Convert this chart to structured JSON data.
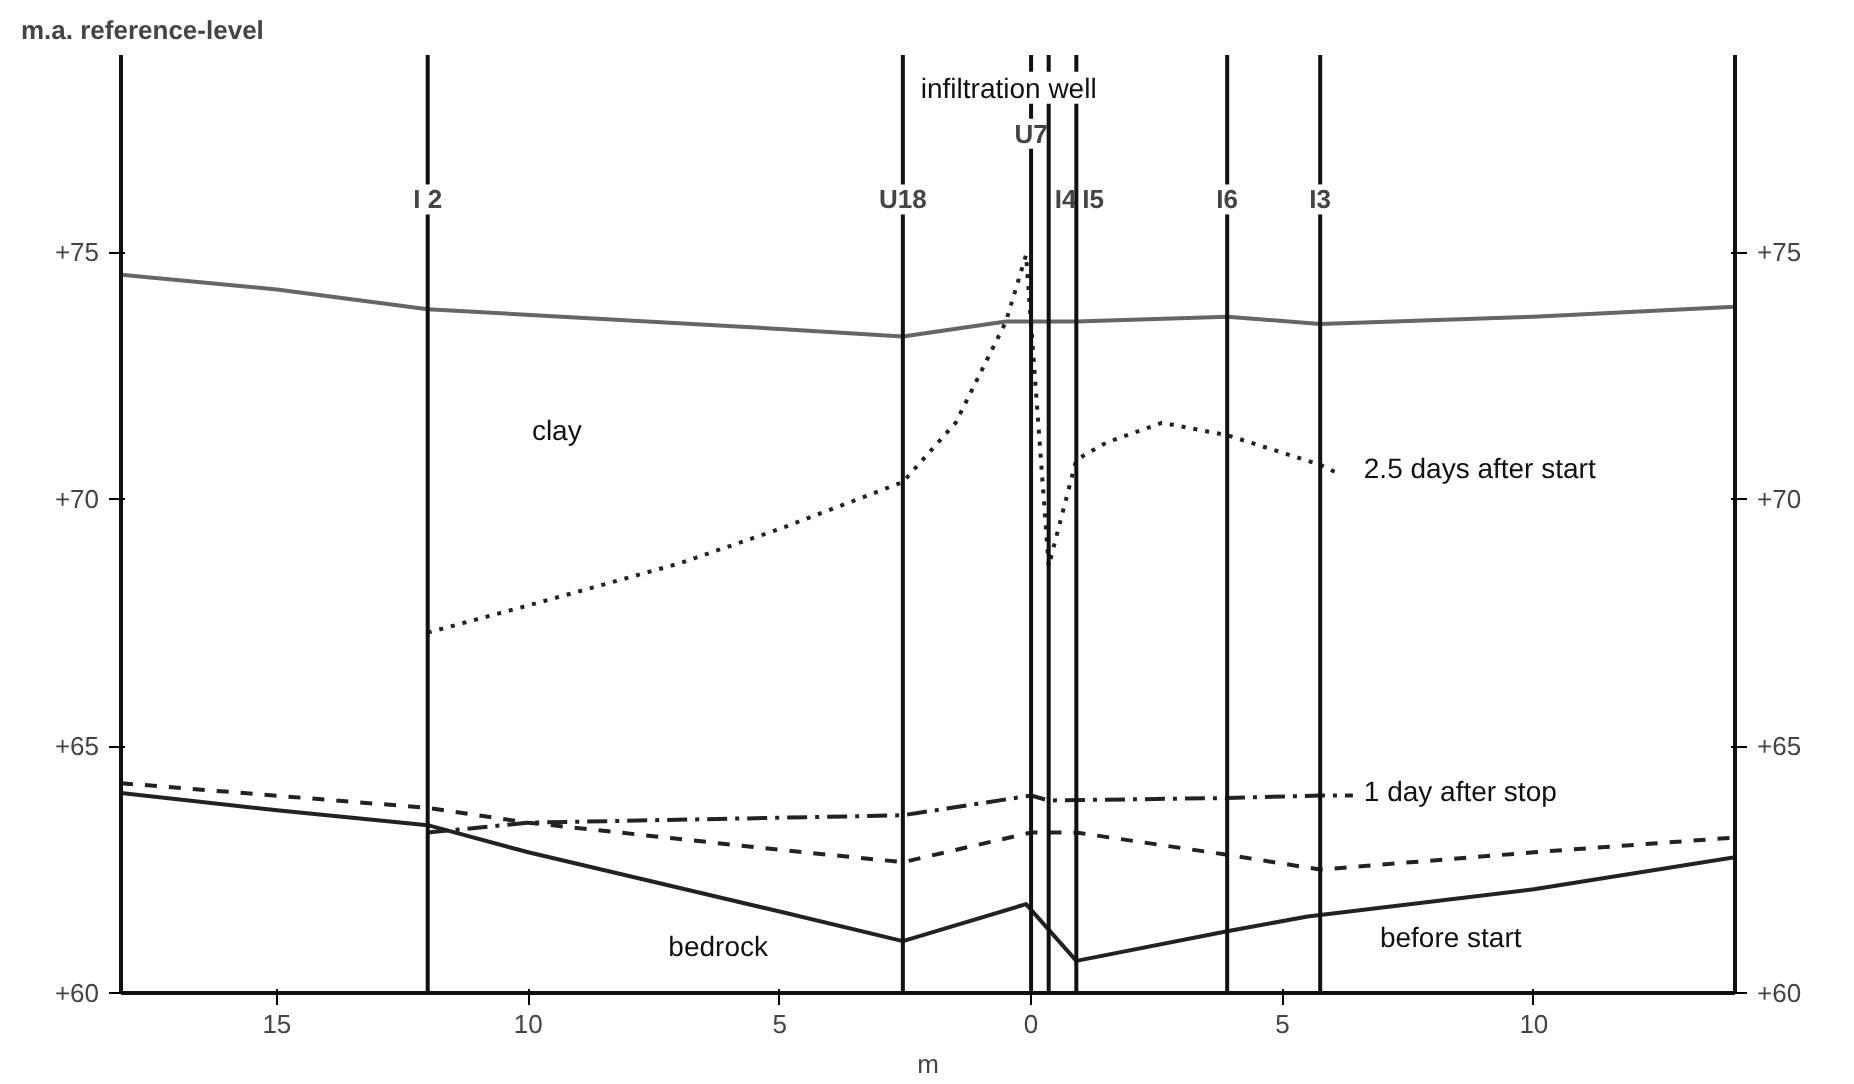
{
  "chart_data": {
    "type": "line",
    "ylabel": "m.a. reference-level",
    "xlabel": "m",
    "xlim": [
      -18.1,
      14.0
    ],
    "ylim": [
      60,
      79
    ],
    "xticks": [
      {
        "value": -15,
        "label": "15"
      },
      {
        "value": -10,
        "label": "10"
      },
      {
        "value": -5,
        "label": "5"
      },
      0,
      5,
      10
    ],
    "yticks": [
      {
        "value": 60,
        "label": "+60"
      },
      {
        "value": 65,
        "label": "+65"
      },
      {
        "value": 70,
        "label": "+70"
      },
      {
        "value": 75,
        "label": "+75"
      }
    ],
    "y2lim": [
      60,
      79
    ],
    "y2ticks": [
      {
        "value": 60,
        "label": "+60"
      },
      {
        "value": 65,
        "label": "+65"
      },
      {
        "value": 70,
        "label": "+70"
      },
      {
        "value": 75,
        "label": "+75"
      }
    ],
    "grid": false,
    "marker": "none",
    "series": [
      {
        "color": "#666666",
        "line_style": "solid",
        "x": [
          -18.1,
          -15,
          -12,
          -5,
          -2.55,
          -0.5,
          0,
          0.9,
          3.9,
          5.75,
          10,
          14.0
        ],
        "values": [
          74.55,
          74.25,
          73.85,
          73.45,
          73.3,
          73.6,
          73.6,
          73.6,
          73.7,
          73.55,
          73.7,
          73.9
        ]
      },
      {
        "color": "#222222",
        "line_style": "solid",
        "x": [
          -18.1,
          -15,
          -12,
          -10,
          -5,
          -2.55,
          -0.1,
          0.9,
          3.9,
          5.5,
          10,
          14.0
        ],
        "values": [
          64.05,
          63.7,
          63.4,
          62.85,
          61.65,
          61.05,
          61.8,
          60.65,
          61.25,
          61.55,
          62.1,
          62.75
        ]
      },
      {
        "color": "#222222",
        "line_style": "dashed",
        "x": [
          -18.1,
          -12,
          -10,
          -5,
          -2.55,
          0,
          0.9,
          3.9,
          5.75,
          10,
          14.0
        ],
        "values": [
          64.25,
          63.75,
          63.45,
          62.9,
          62.65,
          63.25,
          63.25,
          62.8,
          62.5,
          62.85,
          63.15
        ]
      },
      {
        "color": "#222222",
        "line_style": "dashdot",
        "x": [
          -12,
          -10,
          -5,
          -2.55,
          0,
          0.35,
          3.9,
          5.75,
          6.4
        ],
        "values": [
          63.25,
          63.45,
          63.55,
          63.6,
          64.0,
          63.9,
          63.95,
          64.0,
          64.0
        ]
      },
      {
        "color": "#222222",
        "line_style": "dotted",
        "x": [
          -12,
          -10,
          -7,
          -5,
          -2.55,
          -1.5,
          -0.5,
          -0.1,
          0.35,
          0.9,
          1.5,
          2.6,
          3.9,
          5.75,
          6.05
        ],
        "values": [
          67.3,
          67.85,
          68.7,
          69.4,
          70.35,
          71.55,
          73.6,
          74.95,
          68.65,
          70.8,
          71.15,
          71.55,
          71.3,
          70.7,
          70.55
        ]
      }
    ],
    "ref_lines": [
      {
        "axis": "x",
        "value": -12,
        "label": "I 2",
        "color": "#111111"
      },
      {
        "axis": "x",
        "value": -2.55,
        "label": "U18",
        "color": "#111111"
      },
      {
        "axis": "x",
        "value": 0,
        "label": "U7",
        "color": "#111111"
      },
      {
        "axis": "x",
        "value": 0.35,
        "label": "I4",
        "color": "#111111"
      },
      {
        "axis": "x",
        "value": 0.9,
        "label": "I5",
        "color": "#111111"
      },
      {
        "axis": "x",
        "value": 3.9,
        "label": "I6",
        "color": "#111111"
      },
      {
        "axis": "x",
        "value": 5.75,
        "label": "I3",
        "color": "#111111"
      }
    ],
    "annotations": [
      "infiltration well",
      "clay",
      "2.5 days after start",
      "1 day after stop",
      "bedrock",
      "before start"
    ]
  }
}
